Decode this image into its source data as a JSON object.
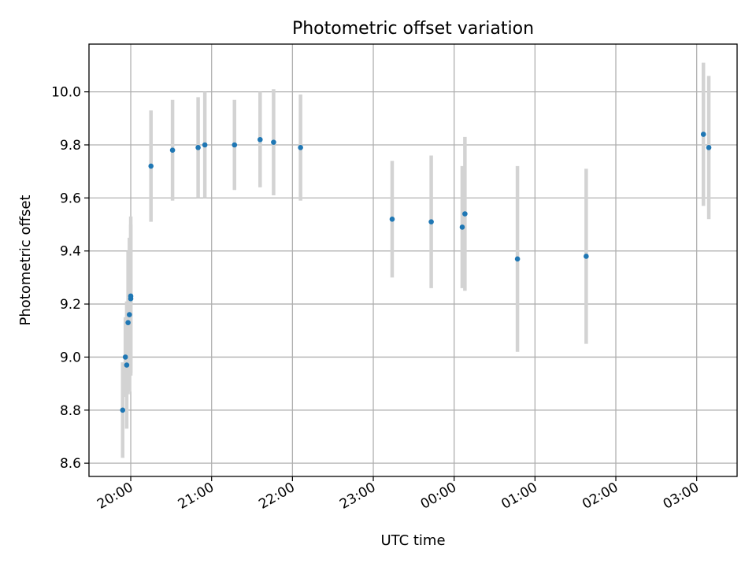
{
  "chart_data": {
    "type": "scatter",
    "title": "Photometric offset variation",
    "xlabel": "UTC time",
    "ylabel": "Photometric offset",
    "xlim": [
      "19:29",
      "03:30"
    ],
    "ylim": [
      8.55,
      10.18
    ],
    "grid": true,
    "x_ticks": [
      "20:00",
      "21:00",
      "22:00",
      "23:00",
      "00:00",
      "01:00",
      "02:00",
      "03:00"
    ],
    "y_ticks": [
      8.6,
      8.8,
      9.0,
      9.2,
      9.4,
      9.6,
      9.8,
      10.0
    ],
    "colors": {
      "point": "#1f77b4",
      "errorbar": "#d3d3d3",
      "grid": "#b0b0b0"
    },
    "points": [
      {
        "time": "19:54",
        "offset": 8.8,
        "error": 0.18
      },
      {
        "time": "19:56",
        "offset": 9.0,
        "error": 0.15
      },
      {
        "time": "19:57",
        "offset": 8.97,
        "error": 0.24
      },
      {
        "time": "19:58",
        "offset": 9.13,
        "error": 0.27
      },
      {
        "time": "19:59",
        "offset": 9.16,
        "error": 0.29
      },
      {
        "time": "20:00",
        "offset": 9.22,
        "error": 0.28
      },
      {
        "time": "20:00",
        "offset": 9.23,
        "error": 0.3
      },
      {
        "time": "20:15",
        "offset": 9.72,
        "error": 0.21
      },
      {
        "time": "20:31",
        "offset": 9.78,
        "error": 0.19
      },
      {
        "time": "20:50",
        "offset": 9.79,
        "error": 0.19
      },
      {
        "time": "20:55",
        "offset": 9.8,
        "error": 0.2
      },
      {
        "time": "21:17",
        "offset": 9.8,
        "error": 0.17
      },
      {
        "time": "21:36",
        "offset": 9.82,
        "error": 0.18
      },
      {
        "time": "21:46",
        "offset": 9.81,
        "error": 0.2
      },
      {
        "time": "22:06",
        "offset": 9.79,
        "error": 0.2
      },
      {
        "time": "23:14",
        "offset": 9.52,
        "error": 0.22
      },
      {
        "time": "23:43",
        "offset": 9.51,
        "error": 0.25
      },
      {
        "time": "00:06",
        "offset": 9.49,
        "error": 0.23
      },
      {
        "time": "00:08",
        "offset": 9.54,
        "error": 0.29
      },
      {
        "time": "00:47",
        "offset": 9.37,
        "error": 0.35
      },
      {
        "time": "01:38",
        "offset": 9.38,
        "error": 0.33
      },
      {
        "time": "03:05",
        "offset": 9.84,
        "error": 0.27
      },
      {
        "time": "03:09",
        "offset": 9.79,
        "error": 0.27
      }
    ]
  }
}
